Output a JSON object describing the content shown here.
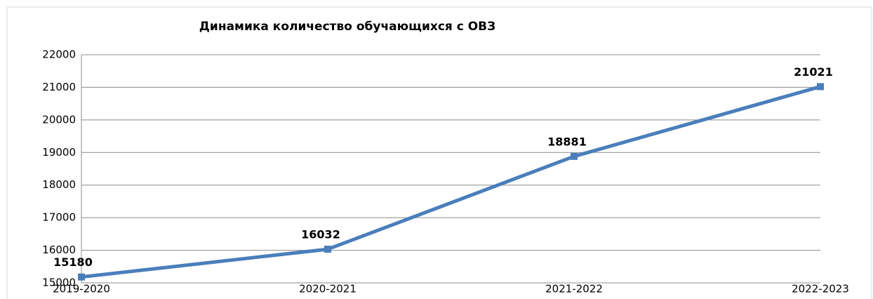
{
  "chart_data": {
    "type": "line",
    "title": "Динамика количество обучающихся с ОВЗ",
    "categories": [
      "2019-2020",
      "2020-2021",
      "2021-2022",
      "2022-2023"
    ],
    "series": [
      {
        "name": "Количество",
        "color": "#4a7ebb",
        "values": [
          15180,
          16032,
          18881,
          21021
        ]
      }
    ],
    "ylim": [
      15000,
      22000
    ],
    "yticks": [
      15000,
      16000,
      17000,
      18000,
      19000,
      20000,
      21000,
      22000
    ],
    "grid": true
  }
}
